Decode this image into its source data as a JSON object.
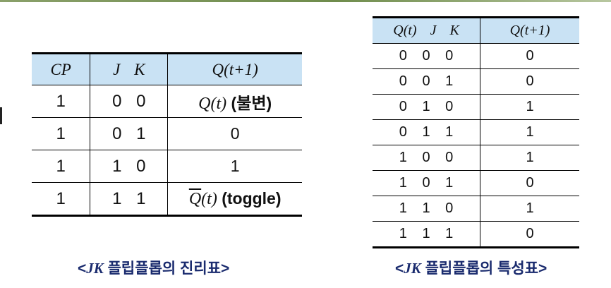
{
  "truth_table": {
    "headers": [
      "CP",
      "J  K",
      "Q(t+1)"
    ],
    "rows": [
      {
        "cp": "1",
        "jk": "0 0",
        "q_var": "Q(t)",
        "q_text": "(불변)"
      },
      {
        "cp": "1",
        "jk": "0 1",
        "q_var": "",
        "q_text": "0"
      },
      {
        "cp": "1",
        "jk": "1 0",
        "q_var": "",
        "q_text": "1"
      },
      {
        "cp": "1",
        "jk": "1 1",
        "q_var_over": "Q",
        "q_var_rest": "(t)",
        "q_text": "(toggle)"
      }
    ],
    "caption_open": "<",
    "caption_jk": "JK",
    "caption_text": " 플립플롭의 진리표>"
  },
  "characteristic_table": {
    "headers": [
      "Q(t)  J  K",
      "Q(t+1)"
    ],
    "rows": [
      {
        "inputs": "0 0 0",
        "output": "0"
      },
      {
        "inputs": "0 0 1",
        "output": "0"
      },
      {
        "inputs": "0 1 0",
        "output": "1"
      },
      {
        "inputs": "0 1 1",
        "output": "1"
      },
      {
        "inputs": "1 0 0",
        "output": "1"
      },
      {
        "inputs": "1 0 1",
        "output": "0"
      },
      {
        "inputs": "1 1 0",
        "output": "1"
      },
      {
        "inputs": "1 1 1",
        "output": "0"
      }
    ],
    "caption_open": "<",
    "caption_jk": "JK",
    "caption_text": " 플립플롭의 특성표>"
  }
}
